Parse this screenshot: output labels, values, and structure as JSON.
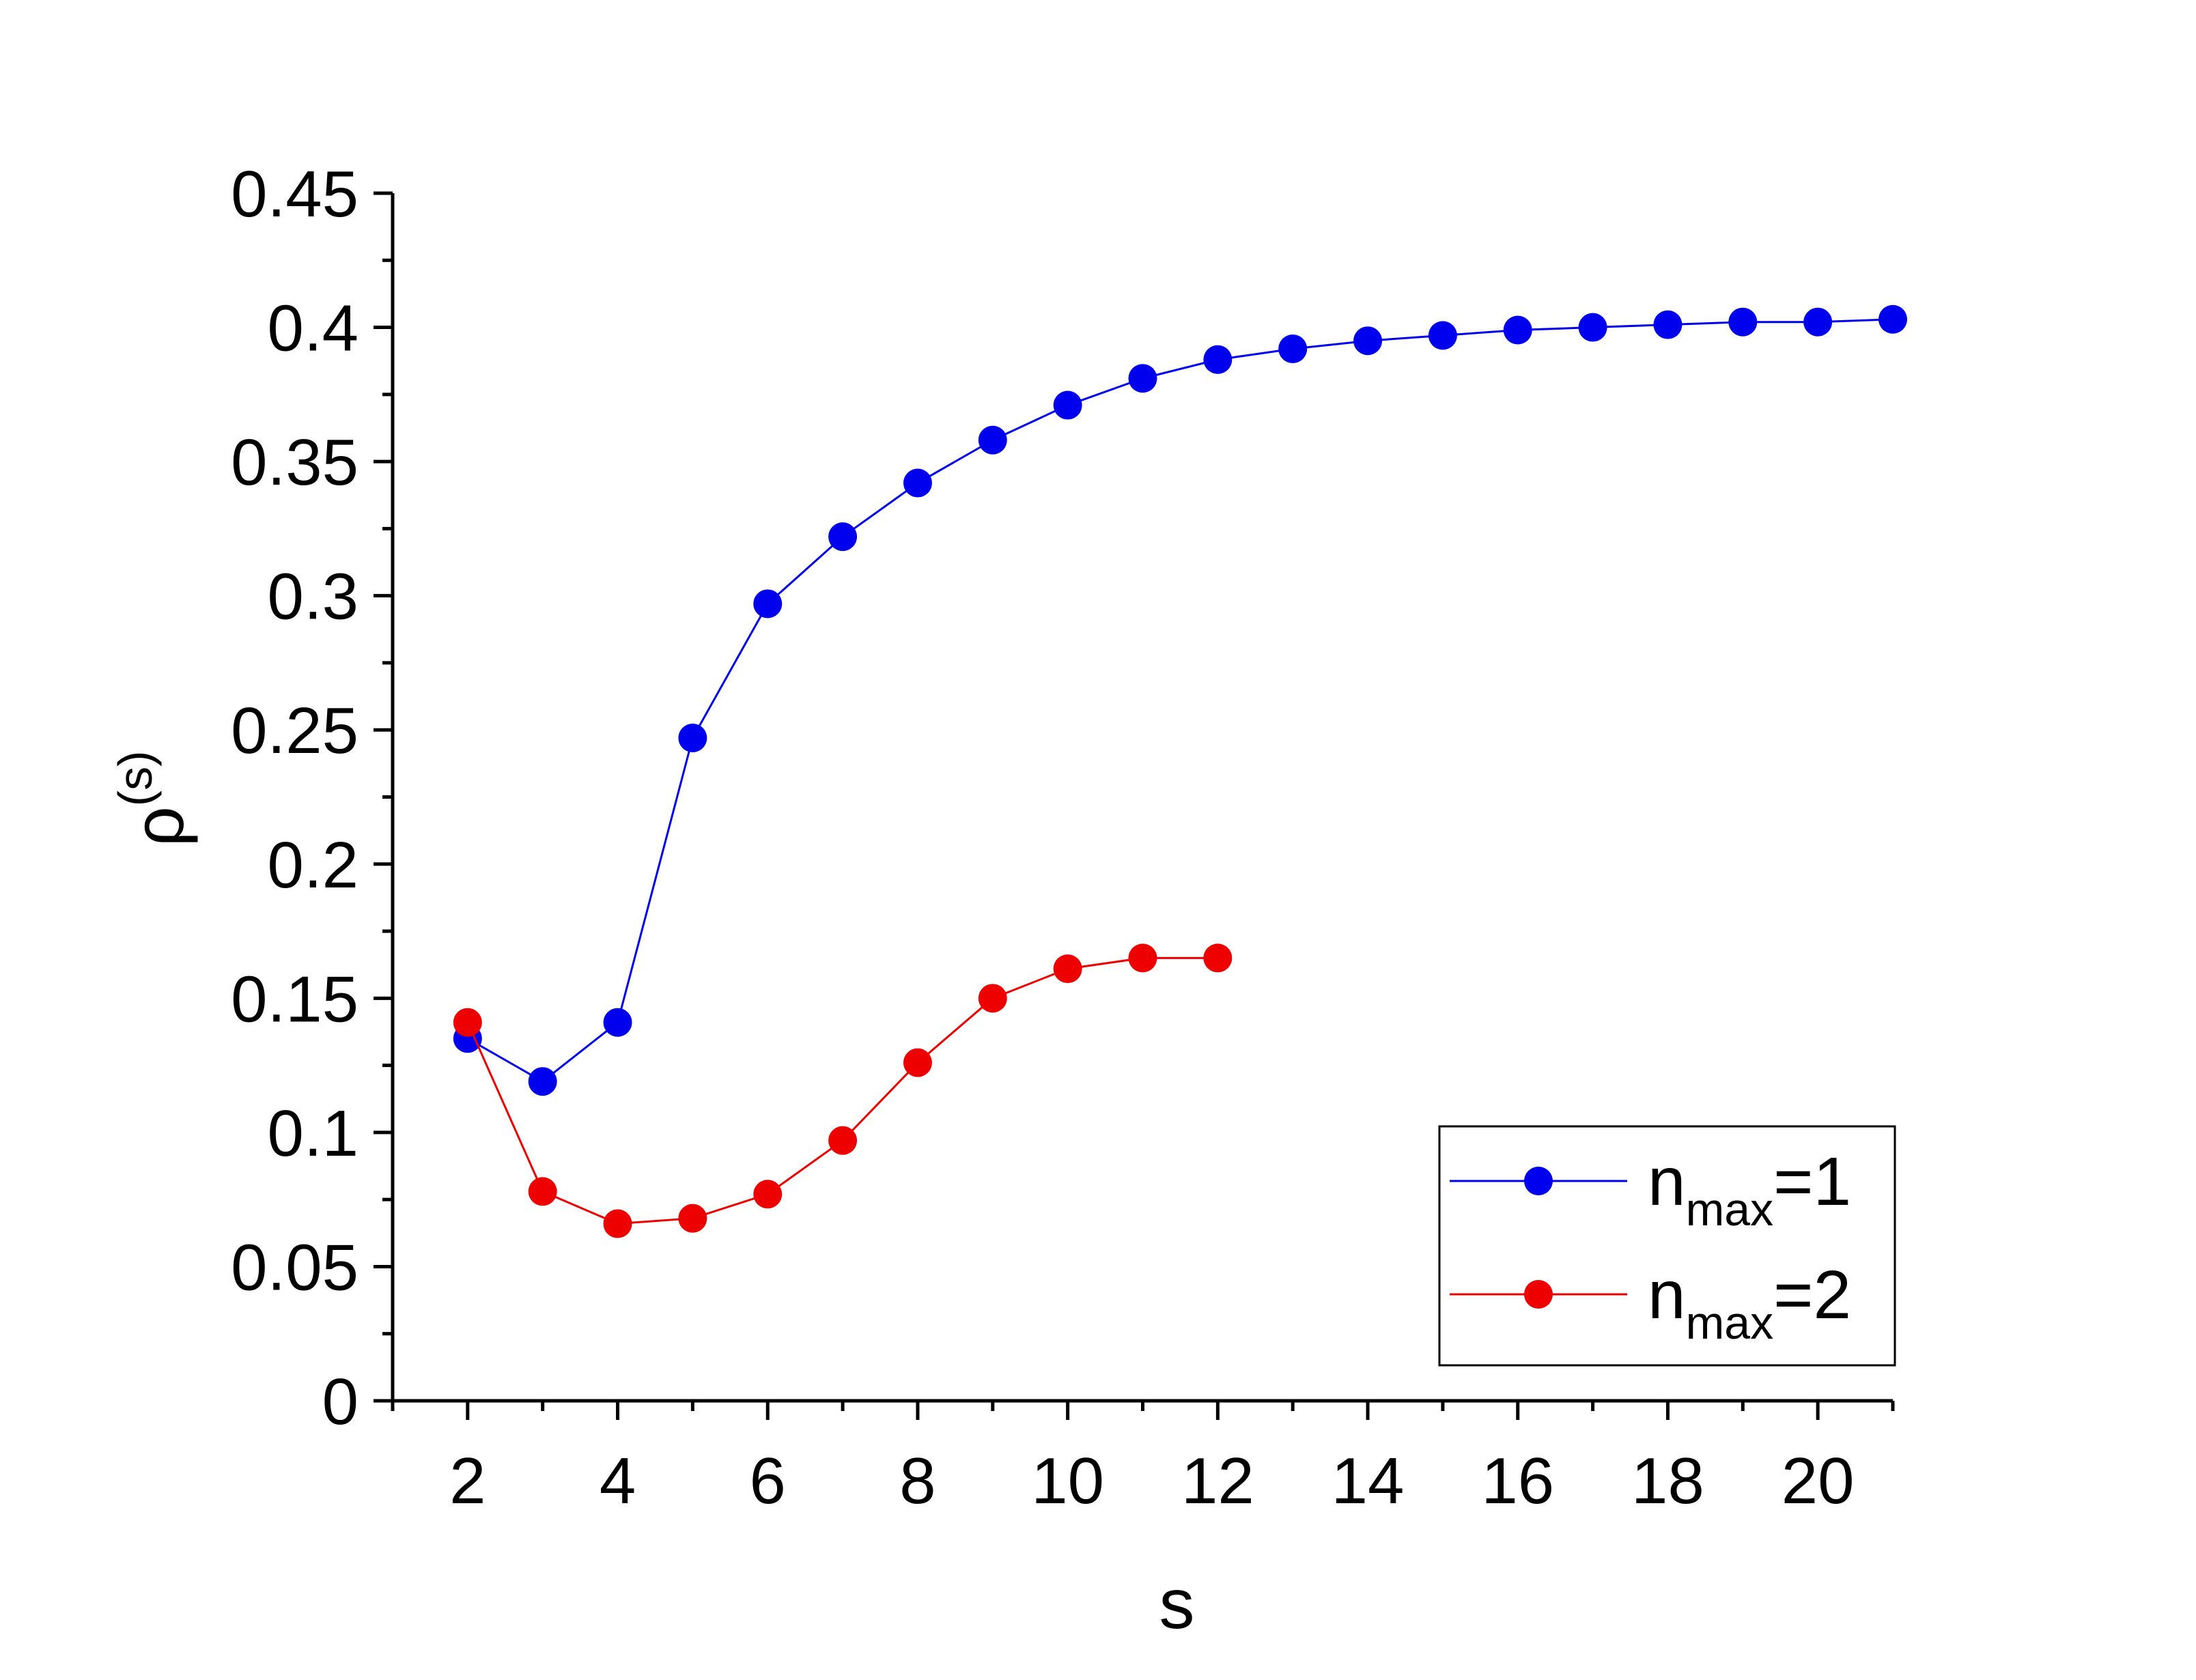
{
  "chart_data": {
    "type": "line",
    "xlabel": "s",
    "ylabel": {
      "base": "ρ",
      "superscript": "(s)"
    },
    "xlim": [
      1,
      21
    ],
    "ylim": [
      0,
      0.45
    ],
    "xticks": [
      2,
      4,
      6,
      8,
      10,
      12,
      14,
      16,
      18,
      20
    ],
    "xtick_labels": [
      "2",
      "4",
      "6",
      "8",
      "10",
      "12",
      "14",
      "16",
      "18",
      "20"
    ],
    "yticks": [
      0,
      0.05,
      0.1,
      0.15,
      0.2,
      0.25,
      0.3,
      0.35,
      0.4,
      0.45
    ],
    "ytick_labels": [
      "0",
      "0.05",
      "0.1",
      "0.15",
      "0.2",
      "0.25",
      "0.3",
      "0.35",
      "0.4",
      "0.45"
    ],
    "grid": false,
    "legend_position": "bottom-right",
    "series": [
      {
        "name": "n_max=1",
        "label": {
          "base": "n",
          "subscript": "max",
          "suffix": "=1"
        },
        "color": "#0000ee",
        "marker": "circle",
        "x": [
          2,
          3,
          4,
          5,
          6,
          7,
          8,
          9,
          10,
          11,
          12,
          13,
          14,
          15,
          16,
          17,
          18,
          19,
          20,
          21
        ],
        "y": [
          0.135,
          0.119,
          0.141,
          0.247,
          0.297,
          0.322,
          0.342,
          0.358,
          0.371,
          0.381,
          0.388,
          0.392,
          0.395,
          0.397,
          0.399,
          0.4,
          0.401,
          0.402,
          0.402,
          0.403
        ]
      },
      {
        "name": "n_max=2",
        "label": {
          "base": "n",
          "subscript": "max",
          "suffix": "=2"
        },
        "color": "#ee0000",
        "marker": "circle",
        "x": [
          2,
          3,
          4,
          5,
          6,
          7,
          8,
          9,
          10,
          11,
          12
        ],
        "y": [
          0.141,
          0.078,
          0.066,
          0.068,
          0.077,
          0.097,
          0.126,
          0.15,
          0.161,
          0.165,
          0.165
        ]
      }
    ]
  }
}
